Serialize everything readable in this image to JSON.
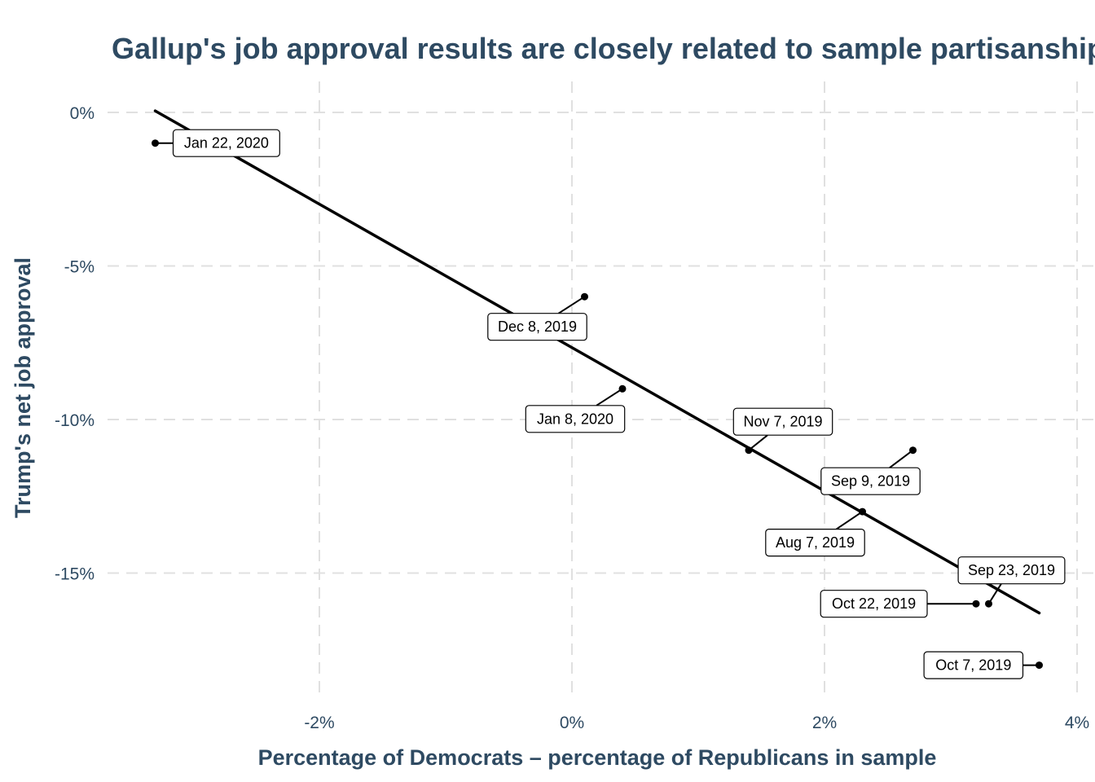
{
  "colors": {
    "text": "#2E4A62",
    "grid": "#E0E0E0",
    "line": "#000000",
    "point": "#000000",
    "label_border": "#000000",
    "label_fill": "#FFFFFF"
  },
  "chart_data": {
    "type": "scatter",
    "title": "Gallup's job approval results are closely related to sample partisanship",
    "xlabel": "Percentage of Democrats – percentage of Republicans in sample",
    "ylabel": "Trump's net job approval",
    "xlim": [
      -4.0,
      4.0
    ],
    "ylim": [
      -18.8,
      0.6
    ],
    "x_ticks": [
      -2,
      0,
      2,
      4
    ],
    "x_tick_labels": [
      "-2%",
      "0%",
      "2%",
      "4%"
    ],
    "y_ticks": [
      0,
      -5,
      -10,
      -15
    ],
    "y_tick_labels": [
      "0%",
      "-5%",
      "-10%",
      "-15%"
    ],
    "grid": true,
    "grid_style": "dashed",
    "legend": "none",
    "points": [
      {
        "label": "Jan 22, 2020",
        "x": -3.3,
        "y": -1
      },
      {
        "label": "Dec 8, 2019",
        "x": 0.1,
        "y": -6
      },
      {
        "label": "Jan 8, 2020",
        "x": 0.4,
        "y": -9
      },
      {
        "label": "Nov 7, 2019",
        "x": 1.4,
        "y": -11
      },
      {
        "label": "Sep 9, 2019",
        "x": 2.7,
        "y": -11
      },
      {
        "label": "Aug 7, 2019",
        "x": 2.3,
        "y": -13
      },
      {
        "label": "Sep 23, 2019",
        "x": 3.3,
        "y": -16
      },
      {
        "label": "Oct 22, 2019",
        "x": 3.2,
        "y": -16
      },
      {
        "label": "Oct 7, 2019",
        "x": 3.7,
        "y": -18
      }
    ],
    "trend_line": {
      "x": [
        -3.3,
        3.7
      ],
      "y": [
        0.05,
        -16.3
      ]
    }
  }
}
